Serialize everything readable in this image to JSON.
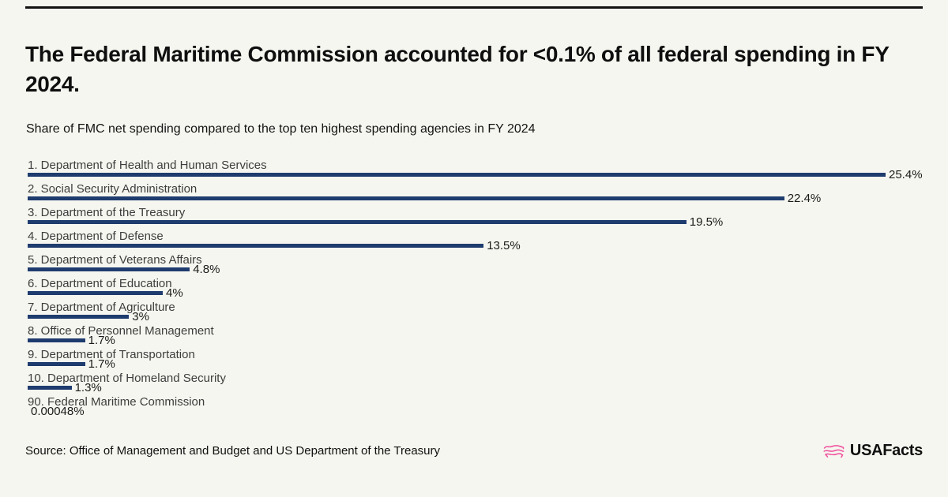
{
  "meta": {
    "background_color": "#f6f6f0",
    "bar_color": "#1e3c6e",
    "rule_color": "#121212",
    "accent_pink": "#ef4e9b"
  },
  "header": {
    "title": "The Federal Maritime Commission accounted for <0.1% of all federal spending in FY 2024.",
    "subtitle": "Share of FMC net spending compared to the top ten highest spending agencies in FY 2024"
  },
  "chart_data": {
    "type": "bar",
    "orientation": "horizontal",
    "title": "The Federal Maritime Commission accounted for <0.1% of all federal spending in FY 2024.",
    "subtitle": "Share of FMC net spending compared to the top ten highest spending agencies in FY 2024",
    "categories": [
      "1. Department of Health and Human Services",
      "2. Social Security Administration",
      "3. Department of the Treasury",
      "4. Department of Defense",
      "5. Department of Veterans Affairs",
      "6. Department of Education",
      "7. Department of Agriculture",
      "8. Office of Personnel Management",
      "9. Department of Transportation",
      "10. Department of Homeland Security",
      "90. Federal Maritime Commission"
    ],
    "values": [
      25.4,
      22.4,
      19.5,
      13.5,
      4.8,
      4,
      3,
      1.7,
      1.7,
      1.3,
      0.00048
    ],
    "value_labels": [
      "25.4%",
      "22.4%",
      "19.5%",
      "13.5%",
      "4.8%",
      "4%",
      "3%",
      "1.7%",
      "1.7%",
      "1.3%",
      "0.00048%"
    ],
    "xlabel": "",
    "ylabel": "",
    "xlim": [
      0,
      25.4
    ],
    "grid": false,
    "legend": false,
    "bar_color": "#1e3c6e"
  },
  "footer": {
    "source": "Source: Office of Management and Budget and US Department of the Treasury",
    "logo_text": "USAFacts",
    "logo_icon": "usafacts-map-icon"
  }
}
